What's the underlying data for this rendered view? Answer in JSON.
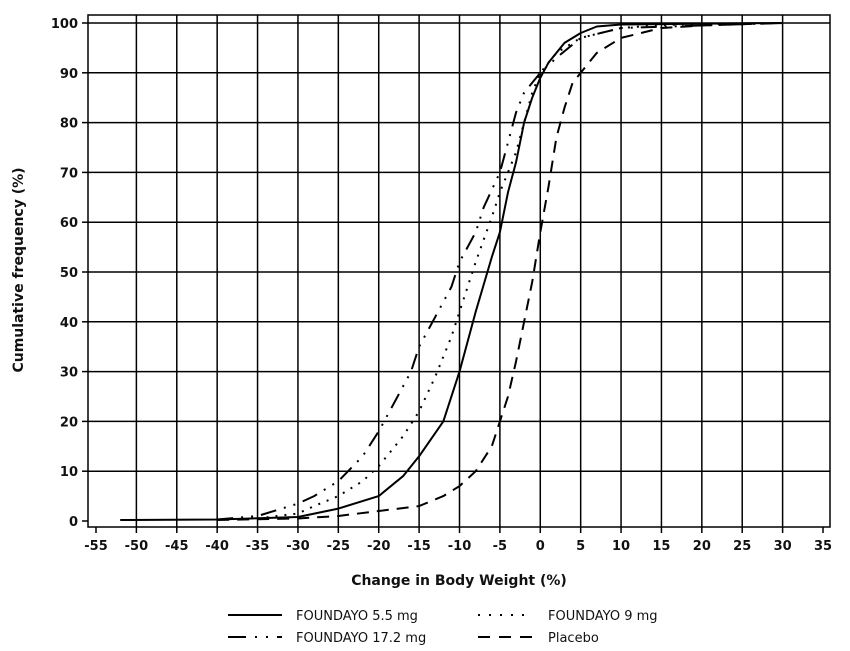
{
  "chart_data": {
    "type": "line",
    "title": "",
    "xlabel": "Change in Body Weight (%)",
    "ylabel": "Cumulative frequency (%)",
    "xlim": [
      -55,
      35
    ],
    "ylim": [
      0,
      100
    ],
    "xticks": [
      -55,
      -50,
      -45,
      -40,
      -35,
      -30,
      -25,
      -20,
      -15,
      -10,
      -5,
      0,
      5,
      10,
      15,
      20,
      25,
      30,
      35
    ],
    "yticks": [
      0,
      10,
      20,
      30,
      40,
      50,
      60,
      70,
      80,
      90,
      100
    ],
    "grid": true,
    "legend_position": "bottom",
    "series": [
      {
        "name": "FOUNDAYO 5.5 mg",
        "style": "solid",
        "x": [
          -52,
          -40,
          -30,
          -25,
          -20,
          -17,
          -15,
          -12,
          -10,
          -8,
          -6,
          -5,
          -4,
          -3,
          -2,
          -1,
          0,
          1,
          2,
          3,
          5,
          7,
          10,
          30
        ],
        "y": [
          0.2,
          0.3,
          0.8,
          2.5,
          5,
          9,
          13,
          20,
          30,
          42,
          53,
          58,
          66,
          72,
          80,
          85,
          89,
          92,
          94,
          96,
          98,
          99.3,
          99.7,
          100
        ]
      },
      {
        "name": "FOUNDAYO 9 mg",
        "style": "dotted",
        "x": [
          -35,
          -30,
          -28,
          -25,
          -22,
          -20,
          -17,
          -15,
          -13,
          -11,
          -10,
          -8,
          -6,
          -5,
          -3,
          -2,
          -1,
          0,
          2,
          5,
          10,
          15,
          30
        ],
        "y": [
          0.5,
          1.5,
          3,
          5,
          8,
          11,
          17,
          22,
          29,
          37,
          42,
          52,
          61,
          66,
          74,
          80,
          86,
          90,
          94,
          97,
          99,
          99.6,
          100
        ]
      },
      {
        "name": "FOUNDAYO 17.2 mg",
        "style": "dash-dot",
        "x": [
          -40,
          -35,
          -32,
          -30,
          -28,
          -25,
          -22,
          -20,
          -18,
          -16,
          -15,
          -13,
          -11,
          -10,
          -8,
          -7,
          -5,
          -4,
          -3,
          -2,
          -1,
          0,
          2,
          5,
          10,
          30
        ],
        "y": [
          0.3,
          1,
          2.5,
          3.5,
          5,
          8,
          13,
          18,
          24,
          30,
          35,
          41,
          47,
          52,
          58,
          63,
          70,
          76,
          82,
          86,
          88,
          90,
          93,
          97,
          99,
          100
        ]
      },
      {
        "name": "Placebo",
        "style": "dashed",
        "x": [
          -40,
          -30,
          -25,
          -20,
          -15,
          -12,
          -10,
          -8,
          -6,
          -5,
          -4,
          -3,
          -2,
          -1,
          0,
          1,
          2,
          3,
          4,
          5,
          7,
          10,
          15,
          20,
          30
        ],
        "y": [
          0.2,
          0.5,
          1,
          2,
          3,
          5,
          7,
          10,
          15,
          20,
          25,
          32,
          40,
          48,
          58,
          67,
          77,
          83,
          88,
          90,
          94,
          97,
          99,
          99.5,
          100
        ]
      }
    ]
  }
}
